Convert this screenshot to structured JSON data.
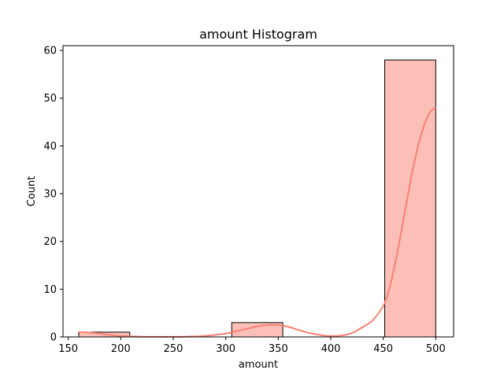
{
  "chart_data": {
    "type": "bar",
    "title": "amount Histogram",
    "xlabel": "amount",
    "ylabel": "Count",
    "xlim": [
      145,
      517
    ],
    "ylim": [
      0,
      61
    ],
    "xticks": [
      150,
      200,
      250,
      300,
      350,
      400,
      450,
      500
    ],
    "yticks": [
      0,
      10,
      20,
      30,
      40,
      50,
      60
    ],
    "bins": [
      {
        "x0": 160,
        "x1": 208.6,
        "count": 1
      },
      {
        "x0": 208.6,
        "x1": 257.1,
        "count": 0
      },
      {
        "x0": 257.1,
        "x1": 305.7,
        "count": 0
      },
      {
        "x0": 305.7,
        "x1": 354.3,
        "count": 3
      },
      {
        "x0": 354.3,
        "x1": 402.9,
        "count": 0
      },
      {
        "x0": 402.9,
        "x1": 451.4,
        "count": 0
      },
      {
        "x0": 451.4,
        "x1": 500,
        "count": 58
      }
    ],
    "kde": {
      "x": [
        160,
        170,
        180,
        190,
        200,
        220,
        240,
        260,
        280,
        300,
        310,
        320,
        330,
        340,
        350,
        360,
        370,
        380,
        390,
        400,
        410,
        420,
        430,
        440,
        450,
        455,
        460,
        465,
        470,
        475,
        480,
        485,
        490,
        495,
        500
      ],
      "y": [
        1.0,
        0.9,
        0.7,
        0.4,
        0.2,
        0.05,
        0.02,
        0.05,
        0.2,
        0.7,
        1.2,
        1.7,
        2.2,
        2.5,
        2.5,
        2.1,
        1.4,
        0.8,
        0.4,
        0.2,
        0.3,
        0.8,
        2.0,
        3.5,
        6.5,
        9.5,
        14.0,
        19.5,
        25.5,
        31.5,
        37.0,
        41.5,
        45.0,
        47.2,
        48.0
      ]
    },
    "bar_color": "#fa8072",
    "bar_fill_opacity": 0.5,
    "bar_edge_color": "#000000",
    "kde_color": "#fa8072",
    "grid": false
  }
}
